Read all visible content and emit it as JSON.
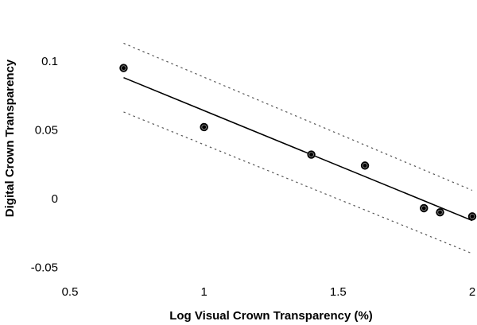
{
  "chart_data": {
    "type": "scatter",
    "title": "",
    "xlabel": "Log Visual Crown Transparency (%)",
    "ylabel": "Digital Crown Transparency",
    "xlim": [
      0.5,
      2.0
    ],
    "ylim": [
      -0.055,
      0.115
    ],
    "x_ticks": [
      0.5,
      1.0,
      1.5,
      2.0
    ],
    "x_tick_labels": [
      "0.5",
      "1",
      "1.5",
      "2"
    ],
    "y_ticks": [
      0.1,
      0.05,
      0.0,
      -0.05
    ],
    "y_tick_labels": [
      "0.1",
      "0.05",
      "0",
      "-0.05"
    ],
    "grid": false,
    "legend": "none",
    "colors": {
      "points": "#000000",
      "line": "#000000",
      "band": "#555555"
    },
    "points": [
      {
        "x": 0.7,
        "y": 0.095
      },
      {
        "x": 1.0,
        "y": 0.052
      },
      {
        "x": 1.4,
        "y": 0.032
      },
      {
        "x": 1.6,
        "y": 0.024
      },
      {
        "x": 1.82,
        "y": -0.007
      },
      {
        "x": 1.88,
        "y": -0.01
      },
      {
        "x": 2.0,
        "y": -0.013
      }
    ],
    "fit_line": [
      {
        "x": 0.7,
        "y": 0.088
      },
      {
        "x": 2.0,
        "y": -0.016
      }
    ],
    "band_upper": [
      {
        "x": 0.7,
        "y": 0.113
      },
      {
        "x": 2.0,
        "y": 0.006
      }
    ],
    "band_lower": [
      {
        "x": 0.7,
        "y": 0.063
      },
      {
        "x": 2.0,
        "y": -0.04
      }
    ]
  }
}
